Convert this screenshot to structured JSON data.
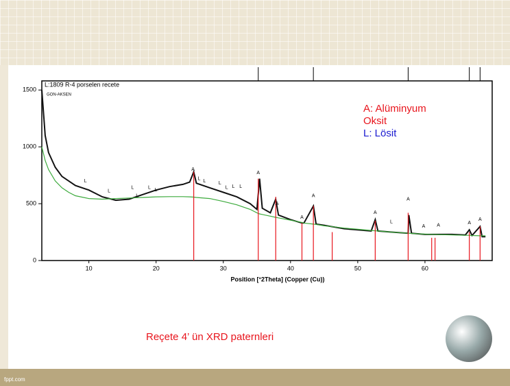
{
  "footer": "fppt.com",
  "caption": "Reçete 4’ ün XRD paternleri",
  "key": [
    {
      "text": "A: Alüminyum Oksit",
      "color": "#e8141c"
    },
    {
      "text": "L: Lösit",
      "color": "#1a1ad0"
    }
  ],
  "chart_data": {
    "type": "line",
    "title": "L:1809  R-4 porselen recete",
    "subtitle": "GON-AKSEN",
    "xlabel": "Position [°2Theta] (Copper (Cu))",
    "xlim": [
      3,
      70
    ],
    "ylim": [
      0,
      1580
    ],
    "xticks": [
      10,
      20,
      30,
      40,
      50,
      60
    ],
    "yticks": [
      0,
      500,
      1000,
      1500
    ],
    "x": [
      3,
      3.5,
      4,
      5,
      6,
      7,
      8,
      10,
      12,
      14,
      16,
      18,
      20,
      22,
      24,
      25,
      25.6,
      26,
      28,
      30,
      32,
      34,
      35,
      35.4,
      35.8,
      37,
      37.8,
      38.2,
      40,
      41.7,
      42,
      43.4,
      43.8,
      45,
      46,
      48,
      50,
      52,
      52.6,
      53,
      55,
      57.5,
      57.6,
      58,
      60,
      62,
      64,
      66,
      66.6,
      67,
      68.2,
      68.5,
      69
    ],
    "series": [
      {
        "color": "#111111",
        "values": [
          1500,
          1100,
          950,
          820,
          740,
          700,
          660,
          620,
          560,
          530,
          540,
          580,
          620,
          650,
          670,
          690,
          780,
          680,
          640,
          600,
          560,
          500,
          450,
          720,
          460,
          420,
          540,
          400,
          360,
          330,
          330,
          480,
          320,
          310,
          300,
          280,
          270,
          260,
          360,
          260,
          250,
          240,
          400,
          240,
          230,
          230,
          230,
          225,
          270,
          220,
          300,
          210,
          210
        ]
      },
      {
        "color": "#3caa3c",
        "values": [
          1000,
          880,
          800,
          700,
          640,
          600,
          570,
          545,
          540,
          545,
          550,
          555,
          560,
          562,
          562,
          560,
          558,
          555,
          545,
          520,
          490,
          450,
          420,
          410,
          405,
          390,
          380,
          375,
          355,
          335,
          330,
          320,
          318,
          305,
          300,
          285,
          275,
          265,
          262,
          260,
          250,
          240,
          240,
          238,
          232,
          228,
          225,
          222,
          222,
          220,
          218,
          218,
          217
        ]
      }
    ],
    "reference_peaks": {
      "color": "#e8141c",
      "x": [
        25.6,
        35.2,
        37.8,
        41.7,
        43.4,
        46.2,
        52.6,
        57.5,
        61,
        61.5,
        66.6,
        68.2
      ],
      "values": [
        780,
        720,
        560,
        330,
        480,
        250,
        350,
        420,
        200,
        200,
        250,
        300
      ]
    },
    "top_markers": [
      35.2,
      43.4,
      57.5,
      66.6,
      68.2
    ],
    "annotations": [
      {
        "text": "L",
        "x": 9.5,
        "y": 700
      },
      {
        "text": "L",
        "x": 13,
        "y": 610
      },
      {
        "text": "L",
        "x": 16.5,
        "y": 640
      },
      {
        "text": "L",
        "x": 17.2,
        "y": 570
      },
      {
        "text": "L",
        "x": 19,
        "y": 640
      },
      {
        "text": "L",
        "x": 20,
        "y": 620
      },
      {
        "text": "A",
        "x": 25.5,
        "y": 800
      },
      {
        "text": "L",
        "x": 26.4,
        "y": 720
      },
      {
        "text": "L",
        "x": 27.2,
        "y": 700
      },
      {
        "text": "L",
        "x": 29.5,
        "y": 680
      },
      {
        "text": "L",
        "x": 30.5,
        "y": 640
      },
      {
        "text": "L",
        "x": 31.5,
        "y": 650
      },
      {
        "text": "L",
        "x": 32.6,
        "y": 650
      },
      {
        "text": "A",
        "x": 35.2,
        "y": 770
      },
      {
        "text": "A",
        "x": 38,
        "y": 500
      },
      {
        "text": "A",
        "x": 41.7,
        "y": 380
      },
      {
        "text": "A",
        "x": 43.4,
        "y": 570
      },
      {
        "text": "A",
        "x": 52.6,
        "y": 420
      },
      {
        "text": "L",
        "x": 55,
        "y": 340
      },
      {
        "text": "A",
        "x": 57.5,
        "y": 540
      },
      {
        "text": "A",
        "x": 59.8,
        "y": 300
      },
      {
        "text": "A",
        "x": 62,
        "y": 310
      },
      {
        "text": "A",
        "x": 66.6,
        "y": 330
      },
      {
        "text": "A",
        "x": 68.2,
        "y": 360
      }
    ]
  }
}
